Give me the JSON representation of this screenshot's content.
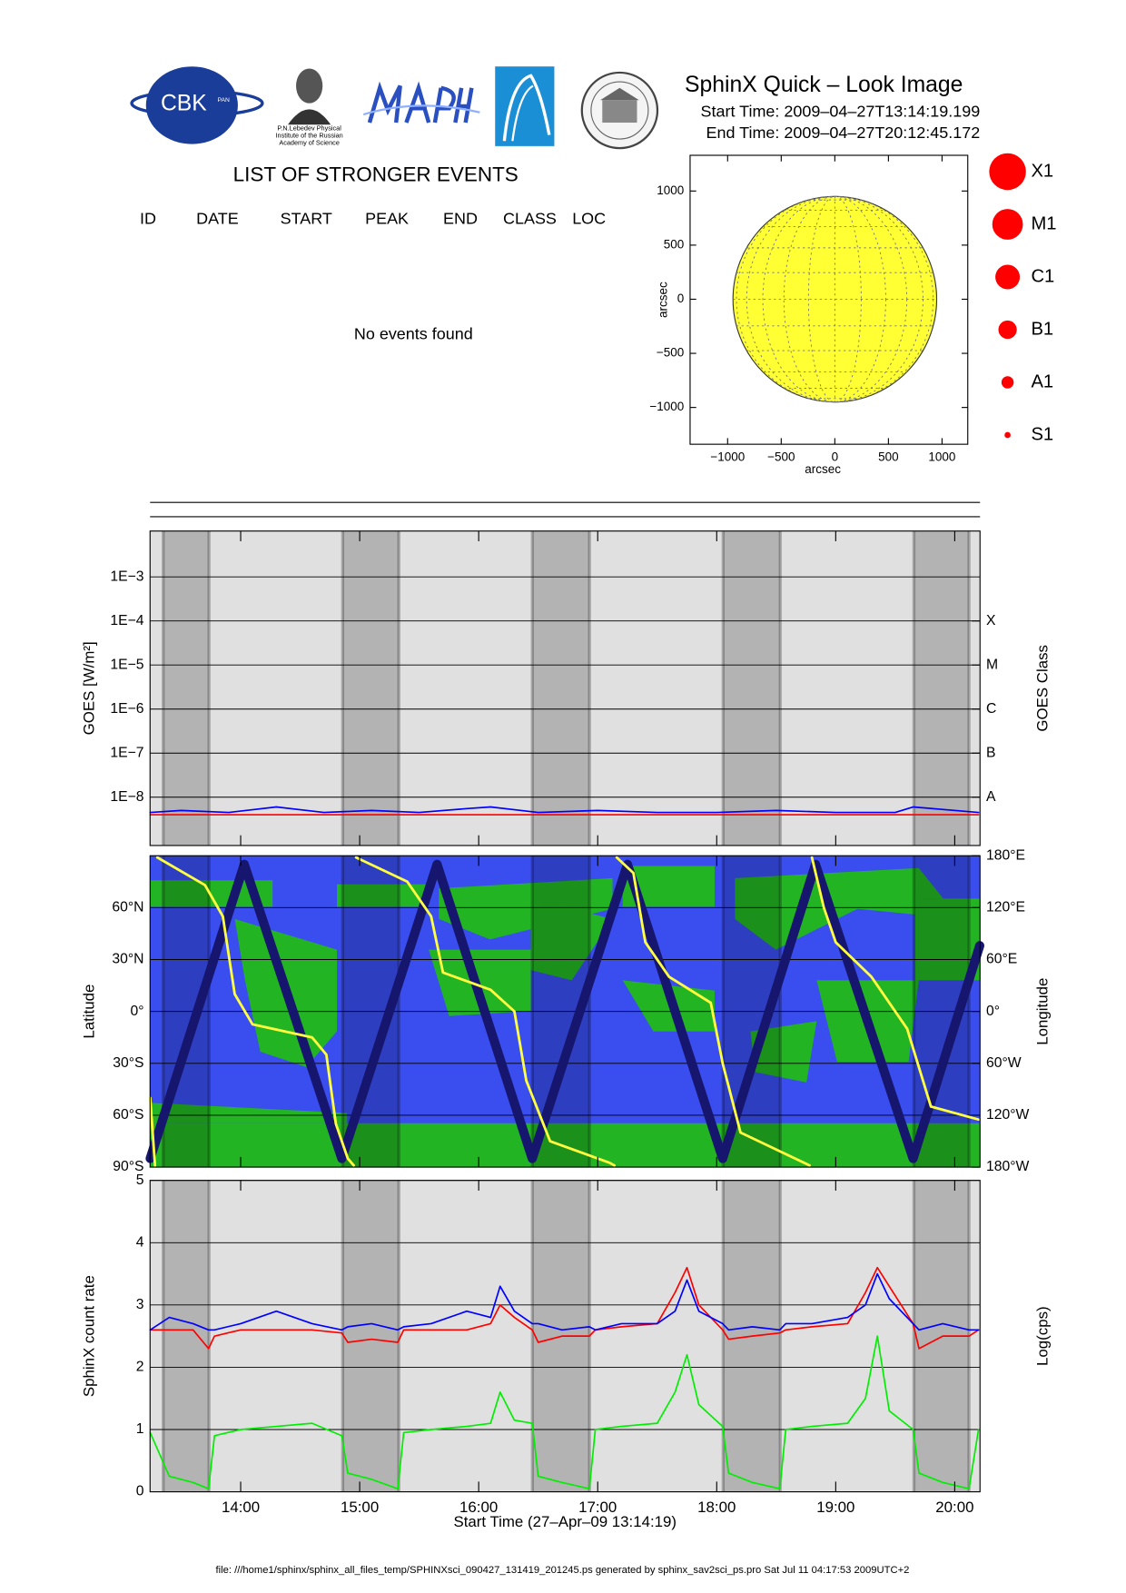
{
  "header": {
    "title": "SphinX Quick – Look Image",
    "start_time": "Start Time: 2009–04–27T13:14:19.199",
    "end_time": "End Time: 2009–04–27T20:12:45.172"
  },
  "logos": {
    "cbk": "CBK",
    "pan": "PAN",
    "lebedev": [
      "P.N.Lebedev Physical",
      "Institute of the Russian",
      "Academy of Science"
    ]
  },
  "events": {
    "title": "LIST OF STRONGER EVENTS",
    "columns": [
      "ID",
      "DATE",
      "START",
      "PEAK",
      "END",
      "CLASS",
      "LOC"
    ],
    "message": "No events found"
  },
  "flare_classes": [
    "X1",
    "M1",
    "C1",
    "B1",
    "A1",
    "S1"
  ],
  "footer": "file: ///home1/sphinx/sphinx_all_files_temp/SPHINXsci_090427_131419_201245.ps generated by sphinx_sav2sci_ps.pro Sat Jul 11 04:17:53 2009UTC+2",
  "chart_data": [
    {
      "type": "disk",
      "xlabel": "arcsec",
      "ylabel": "arcsec",
      "xlim": [
        -1350,
        1240
      ],
      "ylim": [
        -1340,
        1330
      ],
      "xticks": [
        {
          "value": -1000,
          "label": "−1000"
        },
        {
          "value": -500,
          "label": "−500"
        },
        0,
        500,
        1000
      ],
      "yticks": [
        {
          "value": -1000,
          "label": "−1000"
        },
        {
          "value": -500,
          "label": "−500"
        },
        0,
        500,
        1000
      ],
      "disk_radius": 950,
      "color": "#ffff33"
    },
    {
      "type": "line",
      "ylabel": "GOES [W/m²]",
      "y2label": "GOES Class",
      "log_scale": true,
      "grid": true,
      "xlim": [
        13.2386,
        20.2125
      ],
      "xticks": [
        14,
        15,
        16,
        17,
        18,
        19,
        20
      ],
      "ylim": [
        8e-10,
        0.011
      ],
      "yticks": [
        {
          "value": 1e-08,
          "label": "1E−8"
        },
        {
          "value": 1e-07,
          "label": "1E−7"
        },
        {
          "value": 1e-06,
          "label": "1E−6"
        },
        {
          "value": 1e-05,
          "label": "1E−5"
        },
        {
          "value": 0.0001,
          "label": "1E−4"
        },
        {
          "value": 0.001,
          "label": "1E−3"
        }
      ],
      "y2ticks": [
        {
          "value": 1e-08,
          "label": "A"
        },
        {
          "value": 1e-07,
          "label": "B"
        },
        {
          "value": 1e-06,
          "label": "C"
        },
        {
          "value": 1e-05,
          "label": "M"
        },
        {
          "value": 0.0001,
          "label": "X"
        }
      ],
      "shaded": [
        [
          13.349,
          13.734
        ],
        [
          14.857,
          15.329
        ],
        [
          16.451,
          16.931
        ],
        [
          18.054,
          18.534
        ],
        [
          19.657,
          20.12
        ]
      ],
      "x": [
        13.24,
        13.5,
        13.9,
        14.3,
        14.7,
        15.1,
        15.5,
        15.9,
        16.1,
        16.5,
        17.0,
        17.5,
        18.0,
        18.5,
        19.0,
        19.5,
        19.65,
        20.2
      ],
      "series": [
        {
          "color": "#0000ff",
          "values": [
            4.5e-09,
            5e-09,
            4.5e-09,
            6e-09,
            4.5e-09,
            5e-09,
            4.5e-09,
            5.5e-09,
            6e-09,
            4.5e-09,
            5e-09,
            4.5e-09,
            4.5e-09,
            5e-09,
            4.5e-09,
            4.5e-09,
            6e-09,
            4.5e-09
          ]
        },
        {
          "color": "#ff0000",
          "values": [
            4e-09,
            4e-09,
            4e-09,
            4e-09,
            4e-09,
            4e-09,
            4e-09,
            4e-09,
            4e-09,
            4e-09,
            4e-09,
            4e-09,
            4e-09,
            4e-09,
            4e-09,
            4e-09,
            4e-09,
            4e-09
          ]
        }
      ]
    },
    {
      "type": "line",
      "ylabel": "Latitude",
      "y2label": "Longitude",
      "grid": true,
      "xlim": [
        13.2386,
        20.2125
      ],
      "xticks": [
        14,
        15,
        16,
        17,
        18,
        19,
        20
      ],
      "ylim": [
        -90,
        90
      ],
      "yticks": [
        {
          "value": -90,
          "label": "90°S"
        },
        {
          "value": -60,
          "label": "60°S"
        },
        {
          "value": -30,
          "label": "30°S"
        },
        {
          "value": 0,
          "label": "0°"
        },
        {
          "value": 30,
          "label": "30°N"
        },
        {
          "value": 60,
          "label": "60°N"
        }
      ],
      "y2lim": [
        -180,
        180
      ],
      "y2ticks": [
        {
          "value": -180,
          "label": "180°W"
        },
        {
          "value": -120,
          "label": "120°W"
        },
        {
          "value": -60,
          "label": "60°W"
        },
        {
          "value": 0,
          "label": "0°"
        },
        {
          "value": 60,
          "label": "60°E"
        },
        {
          "value": 120,
          "label": "120°E"
        },
        {
          "value": 180,
          "label": "180°E"
        }
      ],
      "shaded": [
        [
          13.349,
          13.734
        ],
        [
          14.857,
          15.329
        ],
        [
          16.451,
          16.931
        ],
        [
          18.054,
          18.534
        ],
        [
          19.657,
          20.12
        ]
      ],
      "series": [
        {
          "color": "#16166e",
          "x": [
            13.24,
            14.03,
            14.85,
            15.65,
            16.45,
            17.25,
            18.05,
            18.83,
            19.65,
            20.21
          ],
          "values": [
            -85,
            85,
            -85,
            85,
            -85,
            85,
            -85,
            85,
            -85,
            38
          ]
        },
        {
          "color": "#ffff40",
          "axis": "y2",
          "x": [
            13.24,
            13.28,
            13.29,
            13.3,
            13.7,
            13.85,
            13.95,
            14.1,
            14.6,
            14.72,
            14.8,
            14.9,
            14.95,
            14.96,
            14.97,
            15.4,
            15.6,
            15.7,
            16.1,
            16.3,
            16.4,
            16.6,
            17.1,
            17.14,
            17.15,
            17.16,
            17.3,
            17.4,
            17.6,
            17.95,
            18.05,
            18.2,
            18.78,
            18.79,
            18.8,
            18.9,
            19.0,
            19.3,
            19.6,
            19.8,
            20.2
          ],
          "values": [
            -100,
            -178,
            null,
            178,
            146,
            110,
            20,
            -15,
            -30,
            -50,
            -130,
            -170,
            -178,
            null,
            178,
            150,
            110,
            45,
            25,
            0,
            -80,
            -150,
            -175,
            -178,
            null,
            178,
            160,
            80,
            40,
            10,
            -60,
            -140,
            -178,
            null,
            178,
            120,
            80,
            40,
            -20,
            -110,
            -125
          ]
        }
      ]
    },
    {
      "type": "line",
      "xlabel": "Start Time (27–Apr–09 13:14:19)",
      "ylabel": "SphinX count rate",
      "y2label": "Log(cps)",
      "grid": true,
      "xlim": [
        13.2386,
        20.2125
      ],
      "xticks": [
        {
          "value": 14,
          "label": "14:00"
        },
        {
          "value": 15,
          "label": "15:00"
        },
        {
          "value": 16,
          "label": "16:00"
        },
        {
          "value": 17,
          "label": "17:00"
        },
        {
          "value": 18,
          "label": "18:00"
        },
        {
          "value": 19,
          "label": "19:00"
        },
        {
          "value": 20,
          "label": "20:00"
        }
      ],
      "ylim": [
        0,
        5
      ],
      "yticks": [
        0,
        1,
        2,
        3,
        4,
        5
      ],
      "shaded": [
        [
          13.349,
          13.734
        ],
        [
          14.857,
          15.329
        ],
        [
          16.451,
          16.931
        ],
        [
          18.054,
          18.534
        ],
        [
          19.657,
          20.12
        ]
      ],
      "x": [
        13.24,
        13.4,
        13.6,
        13.73,
        13.78,
        14.0,
        14.3,
        14.6,
        14.85,
        14.9,
        15.1,
        15.32,
        15.37,
        15.6,
        15.9,
        16.1,
        16.18,
        16.3,
        16.45,
        16.5,
        16.7,
        16.93,
        16.98,
        17.2,
        17.5,
        17.65,
        17.75,
        17.85,
        18.05,
        18.1,
        18.3,
        18.53,
        18.58,
        18.8,
        19.1,
        19.25,
        19.35,
        19.45,
        19.65,
        19.7,
        19.9,
        20.12,
        20.2
      ],
      "series": [
        {
          "color": "#ff0000",
          "values": [
            2.6,
            2.6,
            2.6,
            2.3,
            2.5,
            2.6,
            2.6,
            2.6,
            2.55,
            2.4,
            2.45,
            2.4,
            2.6,
            2.6,
            2.6,
            2.7,
            3.0,
            2.8,
            2.6,
            2.4,
            2.5,
            2.5,
            2.6,
            2.65,
            2.7,
            3.2,
            3.6,
            3.0,
            2.6,
            2.45,
            2.5,
            2.55,
            2.6,
            2.65,
            2.7,
            3.2,
            3.6,
            3.3,
            2.7,
            2.3,
            2.5,
            2.5,
            2.6
          ]
        },
        {
          "color": "#0000ff",
          "values": [
            2.6,
            2.8,
            2.7,
            2.6,
            2.6,
            2.7,
            2.9,
            2.7,
            2.6,
            2.65,
            2.7,
            2.6,
            2.65,
            2.7,
            2.9,
            2.8,
            3.3,
            2.9,
            2.7,
            2.7,
            2.6,
            2.65,
            2.6,
            2.7,
            2.7,
            2.9,
            3.4,
            2.9,
            2.7,
            2.6,
            2.65,
            2.6,
            2.7,
            2.7,
            2.8,
            3.0,
            3.5,
            3.1,
            2.7,
            2.6,
            2.7,
            2.6,
            2.6
          ]
        },
        {
          "color": "#00ee00",
          "values": [
            0.95,
            0.25,
            0.15,
            0.05,
            0.9,
            1.0,
            1.05,
            1.1,
            0.9,
            0.3,
            0.2,
            0.05,
            0.95,
            1.0,
            1.05,
            1.1,
            1.6,
            1.15,
            1.1,
            0.25,
            0.15,
            0.05,
            1.0,
            1.05,
            1.1,
            1.6,
            2.2,
            1.4,
            1.05,
            0.3,
            0.15,
            0.05,
            1.0,
            1.05,
            1.1,
            1.5,
            2.5,
            1.3,
            1.0,
            0.3,
            0.15,
            0.05,
            1.0
          ]
        }
      ]
    }
  ]
}
